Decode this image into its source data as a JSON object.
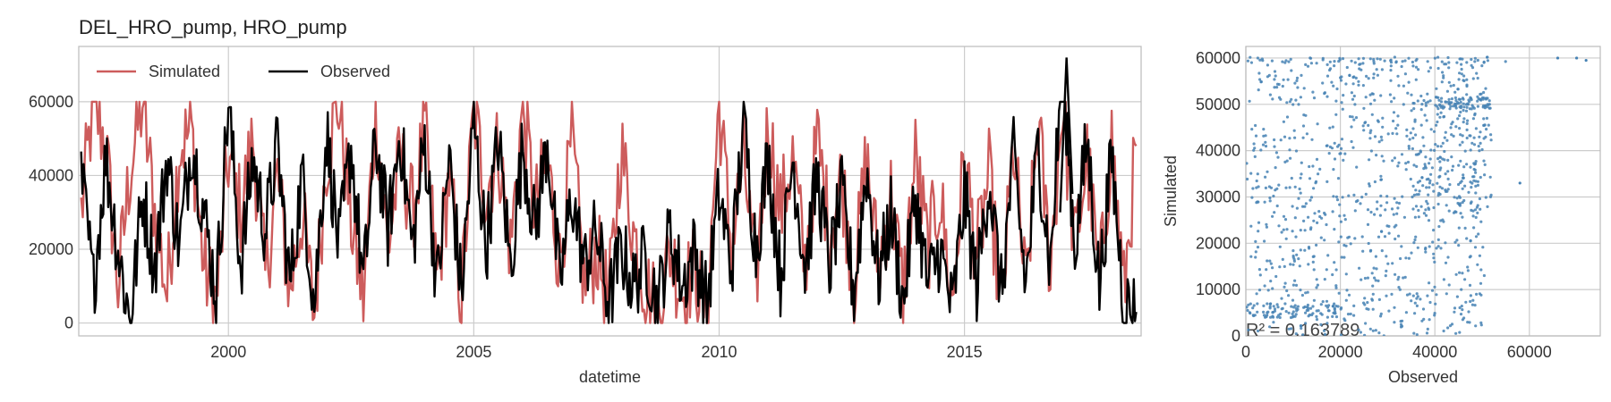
{
  "title": "DEL_HRO_pump, HRO_pump",
  "colors": {
    "simulated": "#cd5c5c",
    "observed": "#000000",
    "scatter": "#4682b4",
    "grid": "#cccccc",
    "frame": "#bbbbbb"
  },
  "chart_data": [
    {
      "type": "line",
      "xlabel": "datetime",
      "ylabel": "",
      "xlim": [
        1996.95,
        2018.6
      ],
      "ylim": [
        -3500,
        75000
      ],
      "xticks": [
        2000,
        2005,
        2010,
        2015
      ],
      "xtick_labels": [
        "2000",
        "2005",
        "2010",
        "2015"
      ],
      "yticks": [
        0,
        20000,
        40000,
        60000
      ],
      "ytick_labels": [
        "0",
        "20000",
        "40000",
        "60000"
      ],
      "grid": true,
      "legend": {
        "placement": "top-left",
        "columns": 2
      },
      "series": [
        {
          "name": "Simulated",
          "x": [
            1997.0,
            1997.25,
            1997.5,
            1997.75,
            1998.0,
            1998.25,
            1998.5,
            1998.75,
            1999.0,
            1999.25,
            1999.5,
            1999.75,
            2000.0,
            2000.25,
            2000.5,
            2000.75,
            2001.0,
            2001.25,
            2001.5,
            2001.75,
            2002.0,
            2002.25,
            2002.5,
            2002.75,
            2003.0,
            2003.25,
            2003.5,
            2003.75,
            2004.0,
            2004.25,
            2004.5,
            2004.75,
            2005.0,
            2005.25,
            2005.5,
            2005.75,
            2006.0,
            2006.25,
            2006.5,
            2006.75,
            2007.0,
            2007.25,
            2007.5,
            2007.75,
            2008.0,
            2008.25,
            2008.5,
            2008.75,
            2009.0,
            2009.25,
            2009.5,
            2009.75,
            2010.0,
            2010.25,
            2010.5,
            2010.75,
            2011.0,
            2011.25,
            2011.5,
            2011.75,
            2012.0,
            2012.25,
            2012.5,
            2012.75,
            2013.0,
            2013.25,
            2013.5,
            2013.75,
            2014.0,
            2014.25,
            2014.5,
            2014.75,
            2015.0,
            2015.25,
            2015.5,
            2015.75,
            2016.0,
            2016.25,
            2016.5,
            2016.75,
            2017.0,
            2017.25,
            2017.5,
            2017.75,
            2018.0,
            2018.25,
            2018.5
          ],
          "values": [
            30000,
            60000,
            48000,
            10000,
            42000,
            60000,
            30000,
            8000,
            48000,
            52000,
            15000,
            5000,
            45000,
            30000,
            50000,
            12000,
            40000,
            8000,
            30000,
            2000,
            45000,
            60000,
            28000,
            6000,
            58000,
            20000,
            45000,
            30000,
            52000,
            12000,
            40000,
            6000,
            58000,
            35000,
            48000,
            20000,
            60000,
            30000,
            45000,
            15000,
            50000,
            10000,
            20000,
            5000,
            48000,
            25000,
            10000,
            3000,
            20000,
            8000,
            15000,
            2000,
            60000,
            20000,
            45000,
            10000,
            55000,
            30000,
            45000,
            15000,
            50000,
            25000,
            40000,
            10000,
            45000,
            15000,
            35000,
            8000,
            45000,
            20000,
            35000,
            5000,
            45000,
            18000,
            40000,
            2000,
            48000,
            8000,
            55000,
            15000,
            60000,
            20000,
            45000,
            10000,
            50000,
            8000,
            48000
          ]
        },
        {
          "name": "Observed",
          "x": [
            1997.0,
            1997.25,
            1997.5,
            1997.75,
            1998.0,
            1998.25,
            1998.5,
            1998.75,
            1999.0,
            1999.25,
            1999.5,
            1999.75,
            2000.0,
            2000.25,
            2000.5,
            2000.75,
            2001.0,
            2001.25,
            2001.5,
            2001.75,
            2002.0,
            2002.25,
            2002.5,
            2002.75,
            2003.0,
            2003.25,
            2003.5,
            2003.75,
            2004.0,
            2004.25,
            2004.5,
            2004.75,
            2005.0,
            2005.25,
            2005.5,
            2005.75,
            2006.0,
            2006.25,
            2006.5,
            2006.75,
            2007.0,
            2007.25,
            2007.5,
            2007.75,
            2008.0,
            2008.25,
            2008.5,
            2008.75,
            2009.0,
            2009.25,
            2009.5,
            2009.75,
            2010.0,
            2010.25,
            2010.5,
            2010.75,
            2011.0,
            2011.25,
            2011.5,
            2011.75,
            2012.0,
            2012.25,
            2012.5,
            2012.75,
            2013.0,
            2013.25,
            2013.5,
            2013.75,
            2014.0,
            2014.25,
            2014.5,
            2014.75,
            2015.0,
            2015.25,
            2015.5,
            2015.75,
            2016.0,
            2016.25,
            2016.5,
            2016.75,
            2017.0,
            2017.25,
            2017.5,
            2017.75,
            2018.0,
            2018.25,
            2018.5
          ],
          "values": [
            40000,
            10000,
            45000,
            20000,
            0,
            35000,
            15000,
            45000,
            20000,
            50000,
            30000,
            8000,
            60000,
            15000,
            45000,
            25000,
            48000,
            10000,
            40000,
            5000,
            52000,
            20000,
            48000,
            10000,
            50000,
            25000,
            52000,
            20000,
            50000,
            10000,
            45000,
            8000,
            55000,
            20000,
            50000,
            15000,
            48000,
            25000,
            50000,
            10000,
            35000,
            15000,
            25000,
            5000,
            20000,
            10000,
            18000,
            5000,
            25000,
            10000,
            20000,
            5000,
            35000,
            15000,
            55000,
            20000,
            45000,
            12000,
            45000,
            15000,
            40000,
            15000,
            35000,
            8000,
            42000,
            12000,
            30000,
            5000,
            35000,
            10000,
            20000,
            3000,
            35000,
            10000,
            40000,
            8000,
            45000,
            10000,
            48000,
            15000,
            72000,
            20000,
            50000,
            10000,
            45000,
            5000,
            3000
          ]
        }
      ]
    },
    {
      "type": "scatter",
      "xlabel": "Observed",
      "ylabel": "Simulated",
      "xlim": [
        0,
        75000
      ],
      "ylim": [
        0,
        62500
      ],
      "xticks": [
        0,
        20000,
        40000,
        60000
      ],
      "xtick_labels": [
        "0",
        "20000",
        "40000",
        "60000"
      ],
      "yticks": [
        0,
        10000,
        20000,
        30000,
        40000,
        50000,
        60000
      ],
      "ytick_labels": [
        "0",
        "10000",
        "20000",
        "30000",
        "40000",
        "50000",
        "60000"
      ],
      "grid": true,
      "annotation": "R² = 0.163789",
      "points_description_count": 1200
    }
  ]
}
